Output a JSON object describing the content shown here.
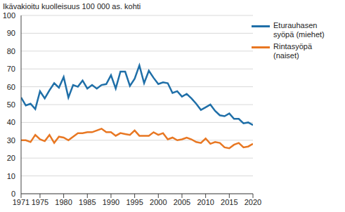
{
  "chart_data": {
    "type": "line",
    "title": "Ikävakioitu kuolleisuus 100 000 as. kohti",
    "x": [
      1971,
      1972,
      1973,
      1974,
      1975,
      1976,
      1977,
      1978,
      1979,
      1980,
      1981,
      1982,
      1983,
      1984,
      1985,
      1986,
      1987,
      1988,
      1989,
      1990,
      1991,
      1992,
      1993,
      1994,
      1995,
      1996,
      1997,
      1998,
      1999,
      2000,
      2001,
      2002,
      2003,
      2004,
      2005,
      2006,
      2007,
      2008,
      2009,
      2010,
      2011,
      2012,
      2013,
      2014,
      2015,
      2016,
      2017,
      2018,
      2019,
      2020
    ],
    "series": [
      {
        "name": "Eturauhasen syöpä (miehet)",
        "color": "#1f6fa8",
        "values": [
          54,
          49.5,
          50.5,
          47.5,
          57.5,
          53.5,
          58,
          62,
          59.5,
          65.5,
          54,
          61,
          60,
          63.5,
          59,
          61,
          59,
          61,
          61.5,
          66.5,
          59,
          68.5,
          68.5,
          60.5,
          64.5,
          72,
          62,
          69,
          65,
          61.5,
          62.5,
          62,
          56.5,
          57.5,
          54.5,
          56,
          53.5,
          50.5,
          47,
          48.5,
          50,
          46.5,
          44,
          43.5,
          45,
          42,
          42,
          39.5,
          40,
          38.5
        ]
      },
      {
        "name": "Rintasyöpä (naiset)",
        "color": "#e87722",
        "values": [
          30,
          30,
          29,
          33,
          30.5,
          29.5,
          33,
          28.5,
          32,
          31.5,
          30,
          32,
          34,
          34,
          34.5,
          34.5,
          35.5,
          36.5,
          34.5,
          34.5,
          32.5,
          34,
          33.5,
          33,
          35.5,
          32.5,
          32.5,
          32.5,
          34.5,
          33,
          34,
          30.5,
          31.5,
          30,
          30.5,
          31.5,
          30.5,
          29,
          28.5,
          31,
          28,
          29,
          28.5,
          26,
          25.5,
          27.5,
          28.5,
          26,
          26.5,
          28
        ]
      }
    ],
    "xlim": [
      1971,
      2020
    ],
    "xticks": [
      1971,
      1975,
      1980,
      1985,
      1990,
      1995,
      2000,
      2005,
      2010,
      2015,
      2020
    ],
    "ylim": [
      0,
      100
    ],
    "yticks": [
      0,
      10,
      20,
      30,
      40,
      50,
      60,
      70,
      80,
      90,
      100
    ],
    "grid": true,
    "legend": "top-right"
  }
}
